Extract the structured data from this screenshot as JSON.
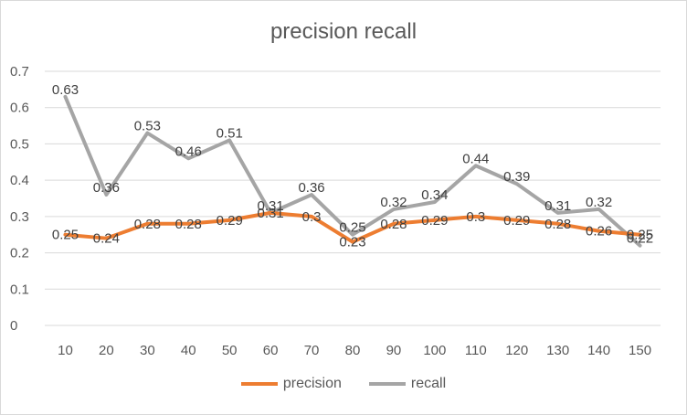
{
  "chart_data": {
    "type": "line",
    "title": "precision recall",
    "categories": [
      "10",
      "20",
      "30",
      "40",
      "50",
      "60",
      "70",
      "80",
      "90",
      "100",
      "110",
      "120",
      "130",
      "140",
      "150"
    ],
    "series": [
      {
        "name": "precision",
        "color": "#ed7d31",
        "values": [
          0.25,
          0.24,
          0.28,
          0.28,
          0.29,
          0.31,
          0.3,
          0.23,
          0.28,
          0.29,
          0.3,
          0.29,
          0.28,
          0.26,
          0.25
        ]
      },
      {
        "name": "recall",
        "color": "#a5a5a5",
        "values": [
          0.63,
          0.36,
          0.53,
          0.46,
          0.51,
          0.31,
          0.36,
          0.25,
          0.32,
          0.34,
          0.44,
          0.39,
          0.31,
          0.32,
          0.22
        ]
      }
    ],
    "ylim": [
      0,
      0.7
    ],
    "yticks": [
      "0",
      "0.1",
      "0.2",
      "0.3",
      "0.4",
      "0.5",
      "0.6",
      "0.7"
    ],
    "grid": true,
    "legend_position": "bottom"
  }
}
